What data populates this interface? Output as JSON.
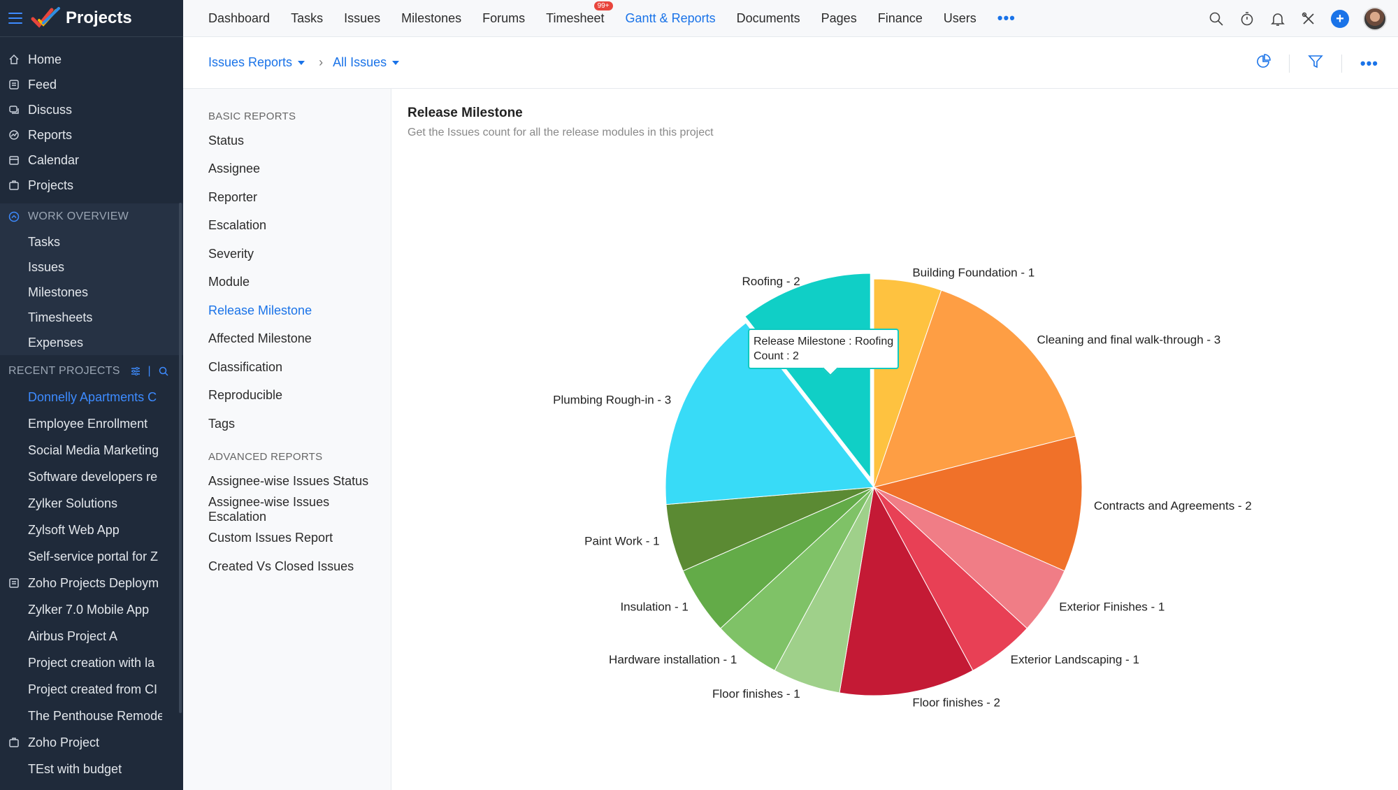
{
  "app": {
    "title": "Projects"
  },
  "sidebar": {
    "nav": [
      {
        "label": "Home",
        "icon": "home-icon"
      },
      {
        "label": "Feed",
        "icon": "feed-icon"
      },
      {
        "label": "Discuss",
        "icon": "discuss-icon"
      },
      {
        "label": "Reports",
        "icon": "reports-icon"
      },
      {
        "label": "Calendar",
        "icon": "calendar-icon"
      },
      {
        "label": "Projects",
        "icon": "projects-icon"
      }
    ],
    "work_overview": {
      "title": "WORK OVERVIEW",
      "items": [
        "Tasks",
        "Issues",
        "Milestones",
        "Timesheets",
        "Expenses"
      ]
    },
    "recent_projects": {
      "title": "RECENT PROJECTS",
      "items": [
        "Donnelly Apartments C",
        "Employee Enrollment",
        "Social Media Marketing",
        "Software developers re",
        "Zylker Solutions",
        "Zylsoft Web App",
        "Self-service portal for Z",
        "Zoho Projects Deploym",
        "Zylker 7.0 Mobile App",
        "Airbus Project A",
        "Project creation with la",
        "Project created from CI",
        "The Penthouse Remode",
        "Zoho Project",
        "TEst with budget"
      ]
    }
  },
  "topnav": {
    "items": [
      "Dashboard",
      "Tasks",
      "Issues",
      "Milestones",
      "Forums",
      "Timesheet",
      "Gantt & Reports",
      "Documents",
      "Pages",
      "Finance",
      "Users"
    ],
    "timesheet_badge": "99+",
    "more": "•••"
  },
  "breadcrumb": {
    "reports": "Issues Reports",
    "view": "All Issues"
  },
  "report_list": {
    "basic_title": "BASIC REPORTS",
    "basic": [
      "Status",
      "Assignee",
      "Reporter",
      "Escalation",
      "Severity",
      "Module",
      "Release Milestone",
      "Affected Milestone",
      "Classification",
      "Reproducible",
      "Tags"
    ],
    "advanced_title": "ADVANCED REPORTS",
    "advanced": [
      "Assignee-wise Issues Status",
      "Assignee-wise Issues Escalation",
      "Custom Issues Report",
      "Created Vs Closed Issues"
    ]
  },
  "report": {
    "title": "Release Milestone",
    "description": "Get the Issues count for all the release modules in this project"
  },
  "tooltip": {
    "line1": "Release Milestone : Roofing",
    "line2": "Count : 2"
  },
  "chart_data": {
    "type": "pie",
    "title": "Release Milestone",
    "slices": [
      {
        "label": "Building Foundation - 1",
        "name": "Building Foundation",
        "value": 1,
        "color": "#fec240"
      },
      {
        "label": "Cleaning and final walk-through - 3",
        "name": "Cleaning and final walk-through",
        "value": 3,
        "color": "#fe9e44"
      },
      {
        "label": "Contracts and Agreements - 2",
        "name": "Contracts and Agreements",
        "value": 2,
        "color": "#f07129"
      },
      {
        "label": "Exterior Finishes - 1",
        "name": "Exterior Finishes",
        "value": 1,
        "color": "#f07d86"
      },
      {
        "label": "Exterior Landscaping - 1",
        "name": "Exterior Landscaping",
        "value": 1,
        "color": "#e84055"
      },
      {
        "label": "Floor finishes - 2",
        "name": "Floor finishes",
        "value": 2,
        "color": "#c41a35"
      },
      {
        "label": "Floor finishes - 1",
        "name": "Floor finishes",
        "value": 1,
        "color": "#9fd08a"
      },
      {
        "label": "Hardware installation - 1",
        "name": "Hardware installation",
        "value": 1,
        "color": "#7fc267"
      },
      {
        "label": "Insulation - 1",
        "name": "Insulation",
        "value": 1,
        "color": "#63ab48"
      },
      {
        "label": "Paint Work - 1",
        "name": "Paint Work",
        "value": 1,
        "color": "#5b8a33"
      },
      {
        "label": "Plumbing Rough-in - 3",
        "name": "Plumbing Rough-in",
        "value": 3,
        "color": "#38dbf7"
      },
      {
        "label": "Roofing - 2",
        "name": "Roofing",
        "value": 2,
        "color": "#10cfc6",
        "highlighted": true
      }
    ]
  }
}
